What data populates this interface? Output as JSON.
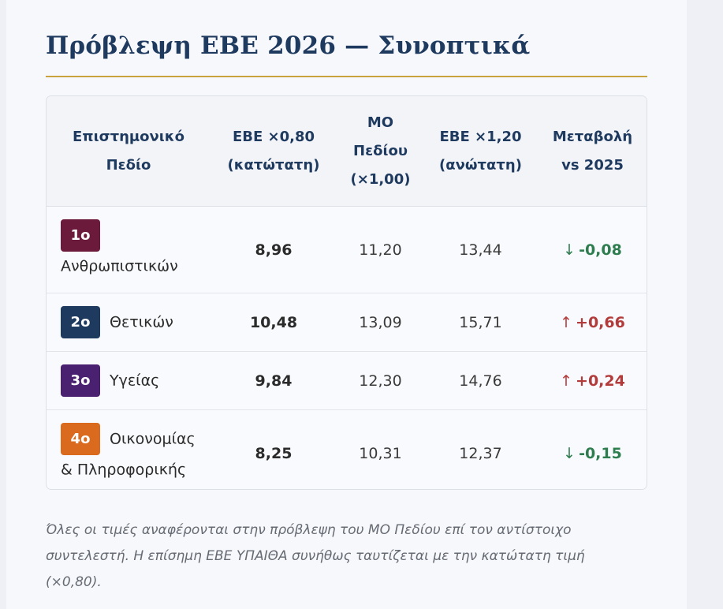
{
  "title": "Πρόβλεψη ΕΒΕ 2026 — Συνοπτικά",
  "table": {
    "headers": [
      "Επιστημονικό Πεδίο",
      "ΕΒΕ ×0,80 (κατώτατη)",
      "ΜΟ Πεδίου (×1,00)",
      "ΕΒΕ ×1,20 (ανώτατη)",
      "Μεταβολή vs 2025"
    ],
    "rows": [
      {
        "badge": "1ο",
        "badge_color": "#6b1a3c",
        "field": "Ανθρωπιστικών",
        "low": "8,96",
        "mean": "11,20",
        "high": "13,44",
        "direction": "down",
        "arrow": "↓",
        "delta": "-0,08"
      },
      {
        "badge": "2ο",
        "badge_color": "#1f3a5f",
        "field": "Θετικών",
        "low": "10,48",
        "mean": "13,09",
        "high": "15,71",
        "direction": "up",
        "arrow": "↑",
        "delta": "+0,66"
      },
      {
        "badge": "3ο",
        "badge_color": "#4a2070",
        "field": "Υγείας",
        "low": "9,84",
        "mean": "12,30",
        "high": "14,76",
        "direction": "up",
        "arrow": "↑",
        "delta": "+0,24"
      },
      {
        "badge": "4ο",
        "badge_color": "#d96a1e",
        "field": "Οικονομίας & Πληροφορικής",
        "low": "8,25",
        "mean": "10,31",
        "high": "12,37",
        "direction": "down",
        "arrow": "↓",
        "delta": "-0,15"
      }
    ]
  },
  "note": "Όλες οι τιμές αναφέρονται στην πρόβλεψη του ΜΟ Πεδίου επί τον αντίστοιχο συντελεστή. Η επίσημη ΕΒΕ ΥΠΑΙΘΑ συνήθως ταυτίζεται με την κατώτατη τιμή (×0,80).",
  "colors": {
    "title": "#1f3a5f",
    "rule": "#c9a33d",
    "down": "#2e7d4f",
    "up": "#b23b3b"
  }
}
